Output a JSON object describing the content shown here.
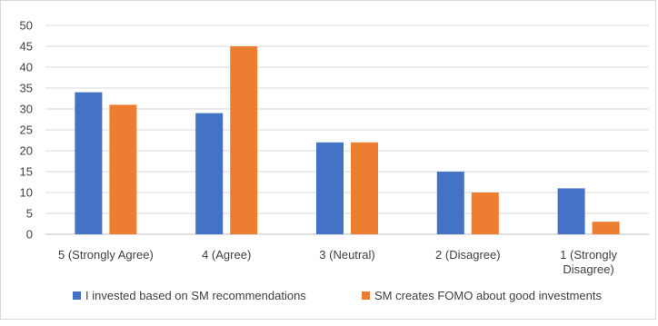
{
  "chart_data": {
    "type": "bar",
    "categories": [
      "5 (Strongly Agree)",
      "4 (Agree)",
      "3 (Neutral)",
      "2 (Disagree)",
      "1 (Strongly Disagree)"
    ],
    "category_lines": [
      [
        "5 (Strongly Agree)"
      ],
      [
        "4 (Agree)"
      ],
      [
        "3 (Neutral)"
      ],
      [
        "2 (Disagree)"
      ],
      [
        "1 (Strongly",
        "Disagree)"
      ]
    ],
    "series": [
      {
        "name": "I invested based on SM recommendations",
        "color": "#4472C4",
        "values": [
          34,
          29,
          22,
          15,
          11
        ]
      },
      {
        "name": "SM creates FOMO about good investments",
        "color": "#ED7D31",
        "values": [
          31,
          45,
          22,
          10,
          3
        ]
      }
    ],
    "ylim": [
      0,
      50
    ],
    "yticks": [
      "0",
      "5",
      "10",
      "15",
      "20",
      "25",
      "30",
      "35",
      "40",
      "45",
      "50"
    ],
    "grid": true,
    "legend": "bottom",
    "title": "",
    "xlabel": "",
    "ylabel": ""
  }
}
